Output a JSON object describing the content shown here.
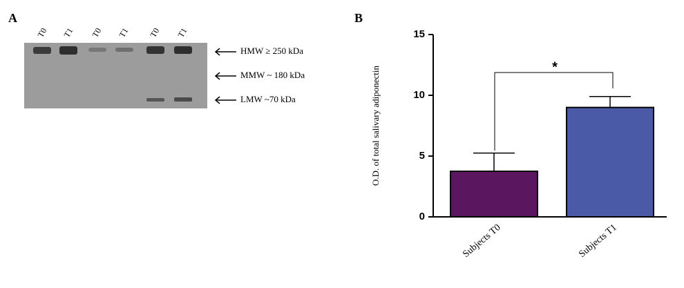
{
  "panel_a": {
    "label": "A",
    "lanes": [
      "T0",
      "T1",
      "T0",
      "T1",
      "T0",
      "T1"
    ],
    "markers": [
      "HMW ≥ 250 kDa",
      "MMW ~ 180 kDa",
      "LMW ~70 kDa"
    ]
  },
  "chart_data": {
    "type": "bar",
    "panel_label": "B",
    "ylabel": "O.D. of total salivary adiponectin",
    "categories": [
      "Subjects T0",
      "Subjects T1"
    ],
    "values": [
      3.75,
      9.0
    ],
    "errors": [
      1.5,
      0.9
    ],
    "colors": [
      "#5a1760",
      "#4b5aa6"
    ],
    "ylim": [
      0,
      15
    ],
    "yticks": [
      0,
      5,
      10,
      15
    ],
    "annotation": "*"
  }
}
